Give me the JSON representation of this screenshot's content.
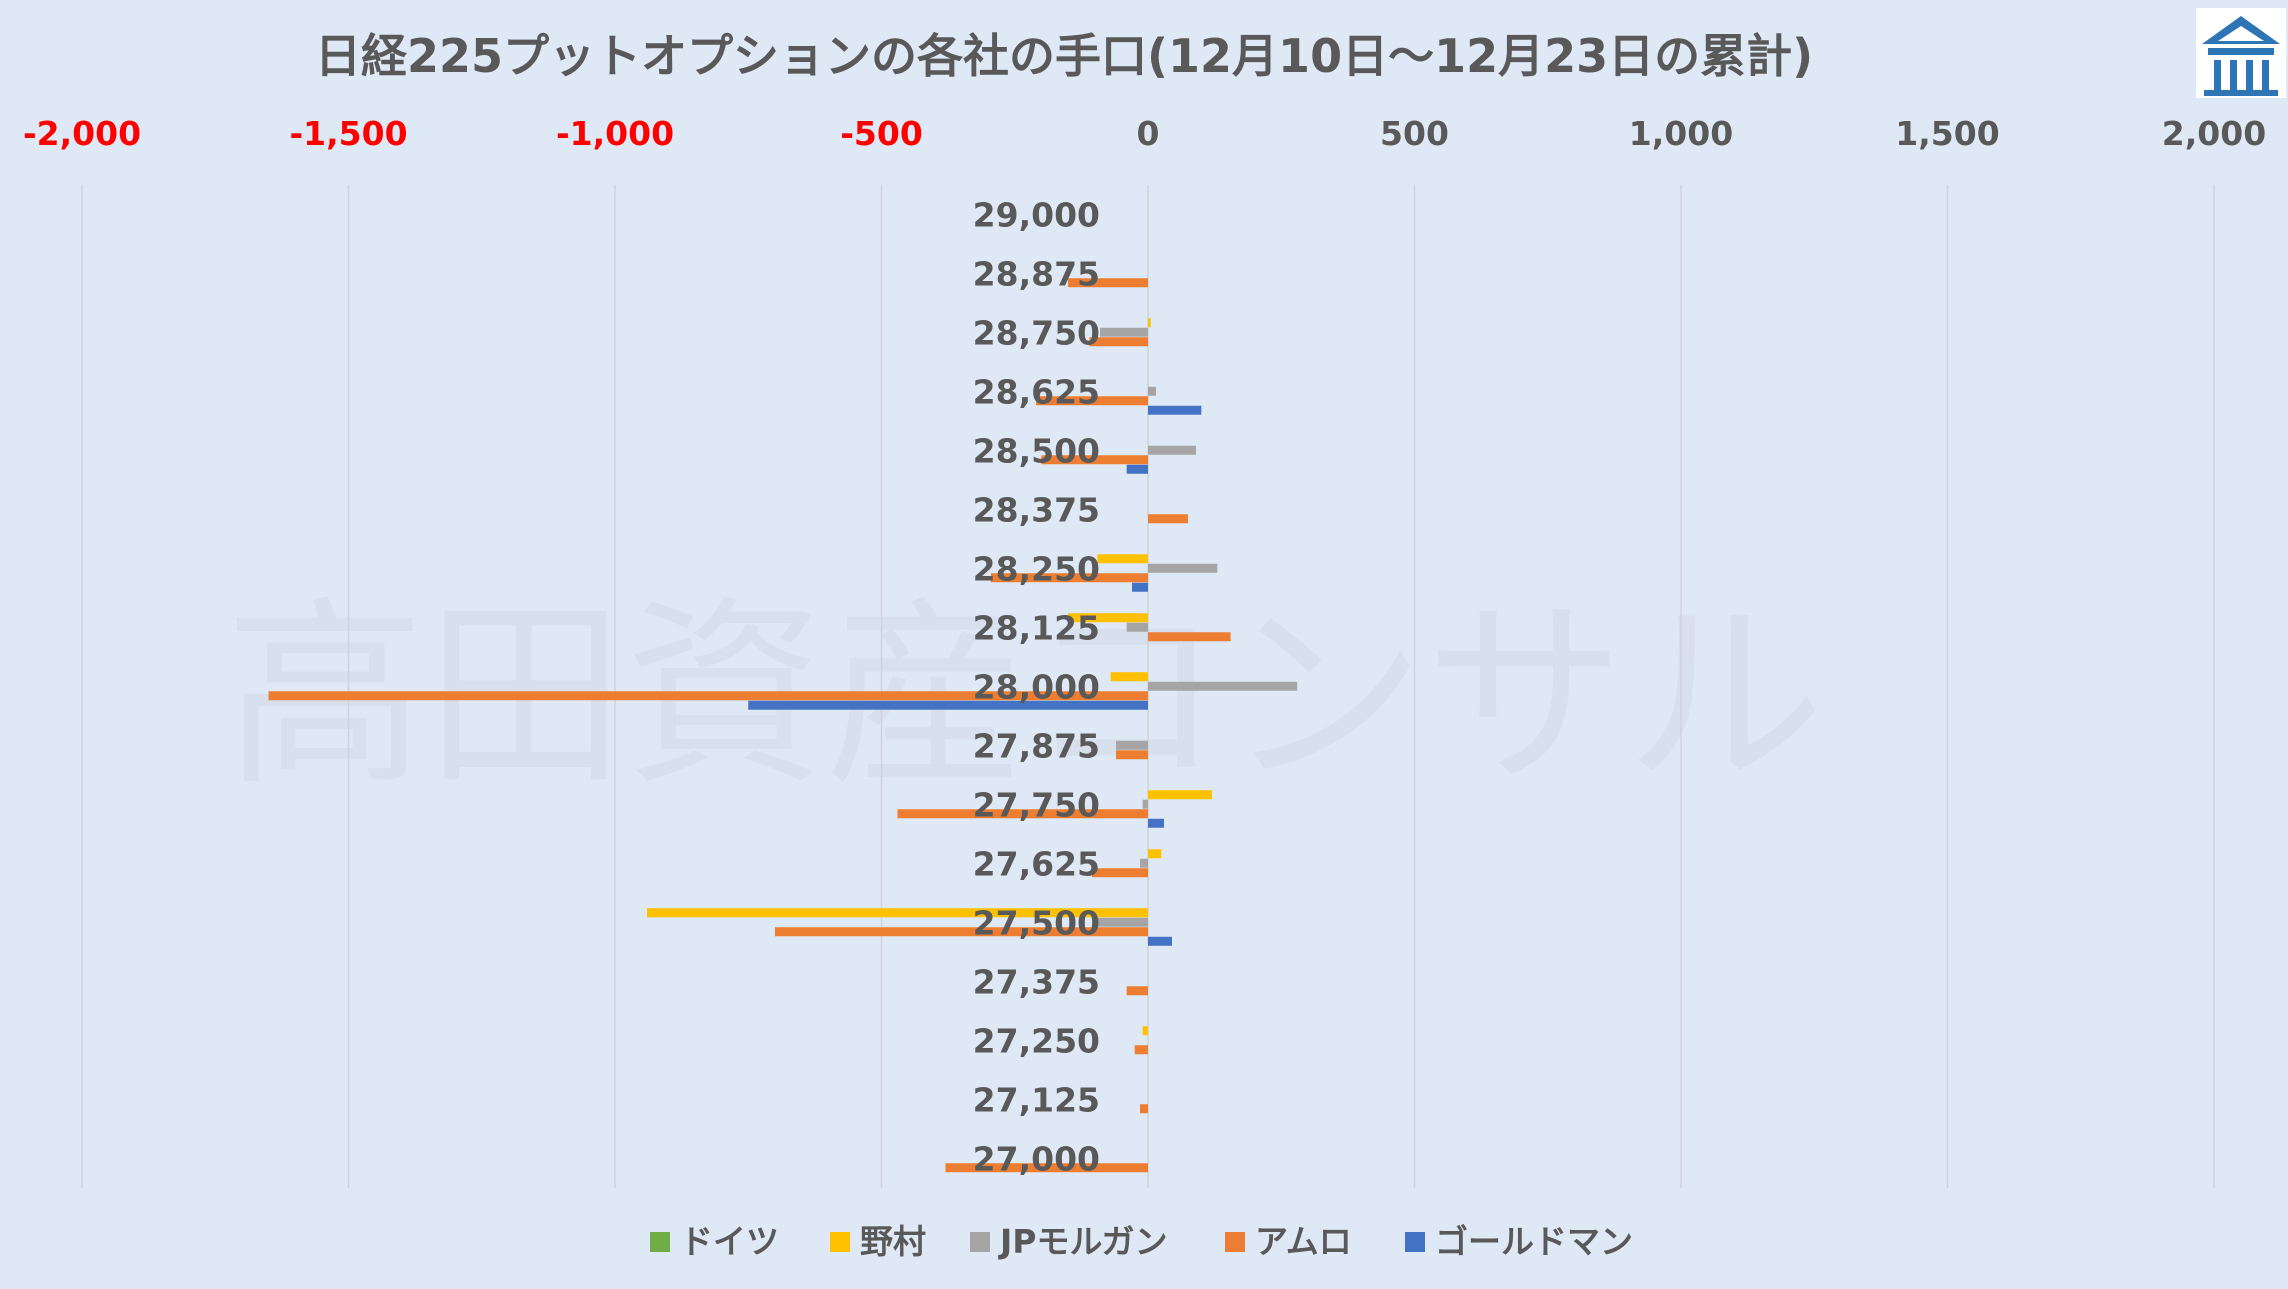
{
  "chart_data": {
    "type": "bar",
    "orientation": "horizontal",
    "title": "日経225プットオプションの各社の手口(12月10日～12月23日の累計)",
    "xlabel": "",
    "ylabel": "",
    "xlim": [
      -2000,
      2000
    ],
    "xticks": [
      {
        "value": -2000,
        "label": "-2,000"
      },
      {
        "value": -1500,
        "label": "-1,500"
      },
      {
        "value": -1000,
        "label": "-1,000"
      },
      {
        "value": -500,
        "label": "-500"
      },
      {
        "value": 0,
        "label": "0"
      },
      {
        "value": 500,
        "label": "500"
      },
      {
        "value": 1000,
        "label": "1,000"
      },
      {
        "value": 1500,
        "label": "1,500"
      },
      {
        "value": 2000,
        "label": "2,000"
      }
    ],
    "categories": [
      "29,000",
      "28,875",
      "28,750",
      "28,625",
      "28,500",
      "28,375",
      "28,250",
      "28,125",
      "28,000",
      "27,875",
      "27,750",
      "27,625",
      "27,500",
      "27,375",
      "27,250",
      "27,125",
      "27,000"
    ],
    "series": [
      {
        "name": "ドイツ",
        "color": "#70ad47",
        "values": [
          0,
          0,
          0,
          0,
          0,
          0,
          0,
          0,
          0,
          0,
          0,
          0,
          0,
          0,
          0,
          0,
          0
        ]
      },
      {
        "name": "野村",
        "color": "#ffc000",
        "values": [
          0,
          0,
          5,
          0,
          0,
          0,
          -95,
          -150,
          -70,
          0,
          120,
          25,
          -940,
          0,
          -10,
          0,
          0
        ]
      },
      {
        "name": "JPモルガン",
        "color": "#a5a5a5",
        "values": [
          0,
          0,
          -90,
          15,
          90,
          0,
          130,
          -40,
          280,
          -60,
          -10,
          -15,
          -100,
          0,
          0,
          0,
          0
        ]
      },
      {
        "name": "アムロ",
        "color": "#ed7d31",
        "values": [
          0,
          -150,
          -110,
          -210,
          -200,
          75,
          -295,
          155,
          -1650,
          -60,
          -470,
          -105,
          -700,
          -40,
          -25,
          -15,
          -380
        ]
      },
      {
        "name": "ゴールドマン",
        "color": "#4472c4",
        "values": [
          0,
          0,
          0,
          100,
          -40,
          0,
          -30,
          0,
          -750,
          0,
          30,
          0,
          45,
          0,
          0,
          0,
          0
        ]
      }
    ],
    "grid": true,
    "legend_position": "bottom"
  },
  "watermark": "高田資産コンサル",
  "logo_icon": "pavilion-logo-icon",
  "colors": {
    "background": "#dfe9f5",
    "negative_tick": "#ff0000",
    "positive_tick": "#595959"
  }
}
